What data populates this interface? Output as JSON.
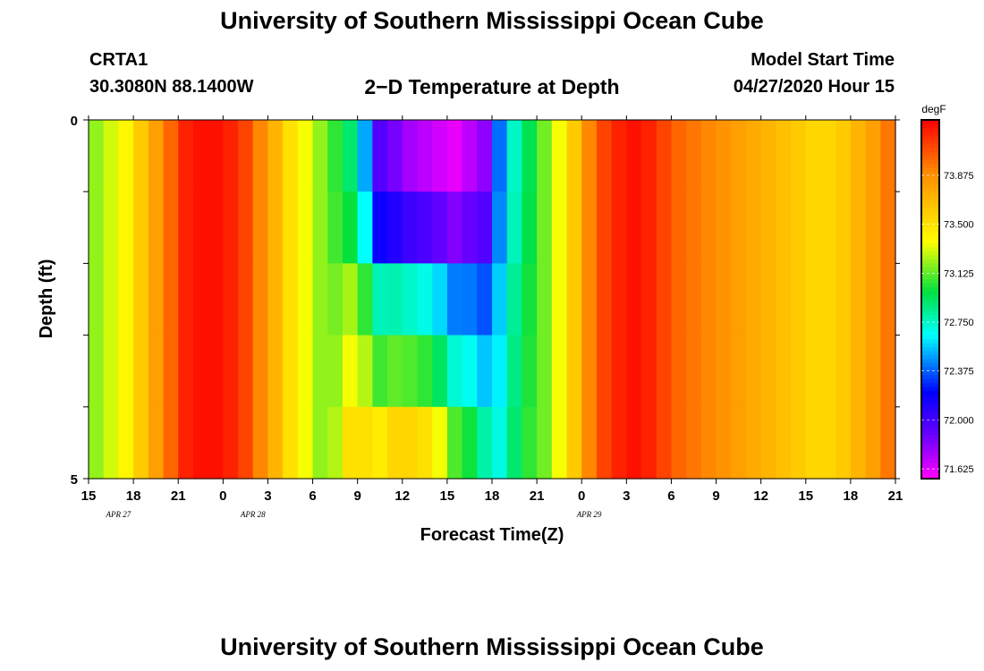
{
  "header": {
    "title": "University of Southern Mississippi Ocean Cube",
    "station_id": "CRTA1",
    "station_coords": "30.3080N 88.1400W",
    "subtitle": "2−D Temperature at Depth",
    "start_label": "Model Start Time",
    "start_value": "04/27/2020 Hour 15"
  },
  "footer": {
    "title": "University of Southern Mississippi Ocean Cube"
  },
  "chart_data": {
    "type": "heatmap",
    "title": "2−D Temperature at Depth",
    "xlabel": "Forecast Time(Z)",
    "ylabel": "Depth (ft)",
    "x_tick_labels": [
      "15",
      "18",
      "21",
      "0",
      "3",
      "6",
      "9",
      "12",
      "15",
      "18",
      "21",
      "0",
      "3",
      "6",
      "9",
      "12",
      "15",
      "18",
      "21"
    ],
    "date_labels": [
      {
        "label": "APR 27",
        "x_index": 2
      },
      {
        "label": "APR 28",
        "x_index": 11
      },
      {
        "label": "APR 29",
        "x_index": 33.5
      }
    ],
    "y_tick_labels": [
      "0",
      "5"
    ],
    "ylim": [
      0,
      5
    ],
    "depth_levels": 5,
    "time_steps": 54,
    "colorbar": {
      "unit": "degF",
      "min": 71.55,
      "max": 74.3,
      "tick_labels": [
        "73.875",
        "73.500",
        "73.125",
        "72.750",
        "72.375",
        "72.000",
        "71.625"
      ],
      "tick_values": [
        73.875,
        73.5,
        73.125,
        72.75,
        72.375,
        72.0,
        71.625
      ]
    },
    "temperature_profile_surface": [
      73.2,
      73.3,
      73.4,
      73.6,
      73.8,
      74.0,
      74.2,
      74.25,
      74.25,
      74.2,
      74.1,
      73.9,
      73.7,
      73.5,
      73.35,
      73.2,
      73.05,
      72.9,
      72.5,
      71.95,
      71.85,
      71.75,
      71.7,
      71.65,
      71.6,
      71.7,
      71.8,
      72.4,
      72.75,
      72.95,
      73.15,
      73.35,
      73.6,
      73.9,
      74.1,
      74.2,
      74.25,
      74.2,
      74.1,
      74.0,
      73.95,
      73.9,
      73.85,
      73.8,
      73.75,
      73.7,
      73.65,
      73.6,
      73.55,
      73.55,
      73.6,
      73.7,
      73.8,
      73.95
    ],
    "depth_anomaly_by_step": [
      0,
      0,
      0,
      0,
      0,
      0,
      0,
      0,
      0,
      0,
      0,
      0,
      0,
      0,
      0,
      0,
      0.2,
      0.6,
      1.0,
      1.5,
      1.7,
      1.8,
      1.8,
      1.7,
      1.5,
      1.3,
      1.0,
      0.3,
      0.15,
      0.1,
      0,
      0,
      0,
      0,
      0,
      0,
      0,
      0,
      0,
      0,
      0,
      0,
      0,
      0,
      0,
      0,
      0,
      0,
      0,
      0,
      0,
      0,
      0,
      0
    ],
    "depth_anomaly_weights": [
      0,
      0.15,
      0.55,
      0.75,
      1.0
    ]
  }
}
